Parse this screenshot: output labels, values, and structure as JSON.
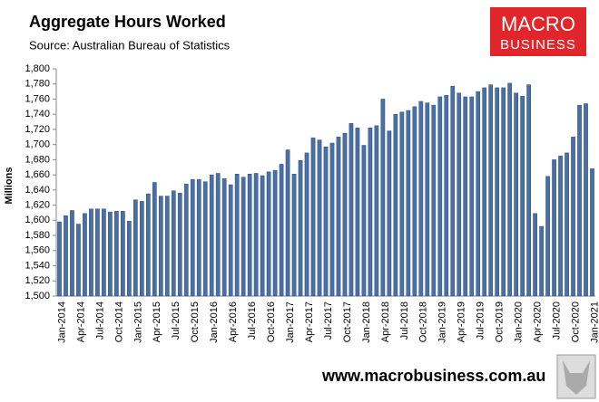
{
  "chart_data": {
    "type": "bar",
    "title": "Aggregate Hours Worked",
    "subtitle": "Source: Australian Bureau of Statistics",
    "ylabel": "Millions",
    "color": "#4a6fa5",
    "grid": false,
    "categories": [
      "Jan-2014",
      null,
      null,
      "Apr-2014",
      null,
      null,
      "Jul-2014",
      null,
      null,
      "Oct-2014",
      null,
      null,
      "Jan-2015",
      null,
      null,
      "Apr-2015",
      null,
      null,
      "Jul-2015",
      null,
      null,
      "Oct-2015",
      null,
      null,
      "Jan-2016",
      null,
      null,
      "Apr-2016",
      null,
      null,
      "Jul-2016",
      null,
      null,
      "Oct-2016",
      null,
      null,
      "Jan-2017",
      null,
      null,
      "Apr-2017",
      null,
      null,
      "Jul-2017",
      null,
      null,
      "Oct-2017",
      null,
      null,
      "Jan-2018",
      null,
      null,
      "Apr-2018",
      null,
      null,
      "Jul-2018",
      null,
      null,
      "Oct-2018",
      null,
      null,
      "Jan-2019",
      null,
      null,
      "Apr-2019",
      null,
      null,
      "Jul-2019",
      null,
      null,
      "Oct-2019",
      null,
      null,
      "Jan-2020",
      null,
      null,
      "Apr-2020",
      null,
      null,
      "Jul-2020",
      null,
      null,
      "Oct-2020",
      null,
      null,
      "Jan-2021"
    ],
    "values": [
      1598,
      1606,
      1613,
      1595,
      1609,
      1615,
      1615,
      1615,
      1611,
      1612,
      1612,
      1599,
      1627,
      1625,
      1635,
      1650,
      1632,
      1632,
      1639,
      1636,
      1648,
      1654,
      1654,
      1651,
      1660,
      1662,
      1655,
      1647,
      1661,
      1657,
      1661,
      1662,
      1659,
      1664,
      1666,
      1674,
      1693,
      1661,
      1679,
      1689,
      1709,
      1706,
      1697,
      1702,
      1710,
      1715,
      1728,
      1722,
      1699,
      1722,
      1725,
      1760,
      1718,
      1740,
      1743,
      1745,
      1750,
      1757,
      1755,
      1752,
      1763,
      1765,
      1777,
      1768,
      1763,
      1763,
      1770,
      1775,
      1779,
      1775,
      1775,
      1781,
      1768,
      1764,
      1779,
      1609,
      1592,
      1658,
      1680,
      1685,
      1689,
      1710,
      1752,
      1754,
      1668
    ],
    "ylim": [
      1500,
      1800
    ],
    "yticks": [
      {
        "value": 1500,
        "label": "1,500"
      },
      {
        "value": 1520,
        "label": "1,520"
      },
      {
        "value": 1540,
        "label": "1,540"
      },
      {
        "value": 1560,
        "label": "1,560"
      },
      {
        "value": 1580,
        "label": "1,580"
      },
      {
        "value": 1600,
        "label": "1,600"
      },
      {
        "value": 1620,
        "label": "1,620"
      },
      {
        "value": 1640,
        "label": "1,640"
      },
      {
        "value": 1660,
        "label": "1,660"
      },
      {
        "value": 1680,
        "label": "1,680"
      },
      {
        "value": 1700,
        "label": "1,700"
      },
      {
        "value": 1720,
        "label": "1,720"
      },
      {
        "value": 1740,
        "label": "1,740"
      },
      {
        "value": 1760,
        "label": "1,760"
      },
      {
        "value": 1780,
        "label": "1,780"
      },
      {
        "value": 1800,
        "label": "1,800"
      }
    ]
  },
  "branding": {
    "logo_top": "MACRO",
    "logo_bottom": "BUSINESS",
    "url": "www.macrobusiness.com.au"
  }
}
